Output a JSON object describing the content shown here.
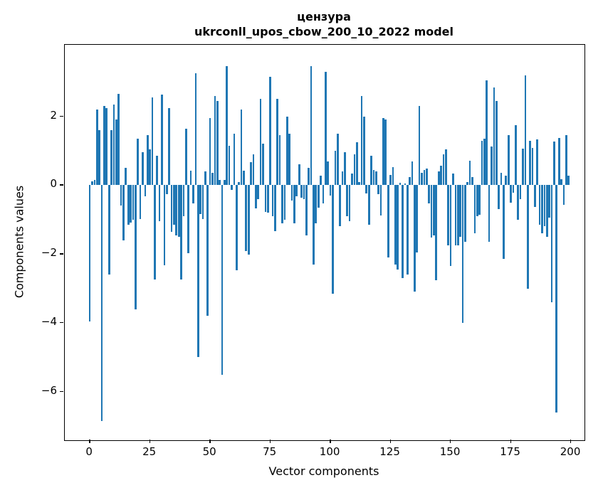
{
  "title": {
    "line1": "цензура",
    "line2": "ukrconll_upos_cbow_200_10_2022 model"
  },
  "chart_data": {
    "type": "bar",
    "title": "цензура\nukrconll_upos_cbow_200_10_2022 model",
    "xlabel": "Vector components",
    "ylabel": "Components values",
    "bar_color": "#1f77b4",
    "grid": false,
    "legend": false,
    "xlim": [
      -10.4,
      205.6
    ],
    "ylim": [
      -7.41,
      4.08
    ],
    "x_ticks": [
      0,
      25,
      50,
      75,
      100,
      125,
      150,
      175,
      200
    ],
    "x_tick_labels": [
      "0",
      "25",
      "50",
      "75",
      "100",
      "125",
      "150",
      "175",
      "200"
    ],
    "y_ticks": [
      2,
      0,
      -2,
      -4,
      -6
    ],
    "y_tick_labels": [
      "2",
      "0",
      "−2",
      "−4",
      "−6"
    ],
    "x": "vector component index 0..199",
    "values": [
      -3.95,
      0.12,
      0.15,
      2.2,
      1.6,
      -6.85,
      2.3,
      2.25,
      -2.6,
      1.6,
      2.35,
      1.9,
      2.65,
      -0.6,
      -1.6,
      0.5,
      -1.15,
      -1.08,
      -1.0,
      -3.6,
      1.35,
      -0.98,
      0.95,
      -0.32,
      1.45,
      1.05,
      2.55,
      -2.75,
      0.85,
      -1.05,
      2.64,
      -2.33,
      -0.26,
      2.24,
      -1.35,
      -1.15,
      -1.45,
      -1.5,
      -2.75,
      -0.9,
      1.64,
      -1.98,
      0.42,
      -0.52,
      3.26,
      -5.0,
      -0.84,
      -0.98,
      0.4,
      -3.8,
      1.95,
      0.36,
      2.6,
      2.45,
      0.16,
      -5.5,
      0.15,
      3.45,
      1.15,
      -0.13,
      1.5,
      -2.48,
      0.1,
      2.2,
      0.43,
      -1.91,
      -2.01,
      0.67,
      0.9,
      -0.67,
      -0.4,
      2.5,
      1.2,
      -0.77,
      -0.8,
      3.15,
      -0.9,
      -1.33,
      2.5,
      1.45,
      -1.1,
      -1.0,
      2.0,
      1.5,
      -0.45,
      -1.1,
      -0.33,
      0.6,
      -0.36,
      -0.41,
      -1.45,
      0.5,
      3.45,
      -2.3,
      -1.1,
      -0.66,
      0.27,
      -0.53,
      3.3,
      0.7,
      -0.3,
      -3.15,
      1.0,
      1.5,
      -1.2,
      0.4,
      0.95,
      -0.9,
      -1.05,
      0.33,
      0.9,
      1.25,
      0.1,
      2.6,
      2.0,
      -0.23,
      -1.15,
      0.85,
      0.45,
      0.4,
      -0.27,
      -0.87,
      1.95,
      1.9,
      -2.1,
      0.3,
      0.53,
      -2.3,
      -2.45,
      0.07,
      -2.7,
      0.05,
      -2.6,
      0.23,
      0.7,
      -3.1,
      -1.95,
      2.3,
      0.37,
      0.44,
      0.49,
      -0.53,
      -1.53,
      -1.45,
      -2.77,
      0.4,
      0.56,
      0.9,
      1.05,
      -1.75,
      -2.35,
      0.33,
      -1.75,
      -1.75,
      -1.5,
      -4.0,
      -1.65,
      0.1,
      0.72,
      0.23,
      -1.4,
      -0.9,
      -0.85,
      1.3,
      1.35,
      3.05,
      -1.65,
      1.12,
      2.85,
      2.45,
      -0.69,
      0.36,
      -2.15,
      0.27,
      1.45,
      -0.5,
      -0.22,
      1.74,
      -1.0,
      -0.4,
      1.07,
      3.2,
      -3.0,
      1.29,
      1.09,
      -0.63,
      1.34,
      -1.15,
      -1.4,
      -1.2,
      -1.5,
      -0.94,
      -3.4,
      1.27,
      -6.6,
      1.38,
      0.18,
      -0.58,
      1.45,
      0.28
    ]
  }
}
